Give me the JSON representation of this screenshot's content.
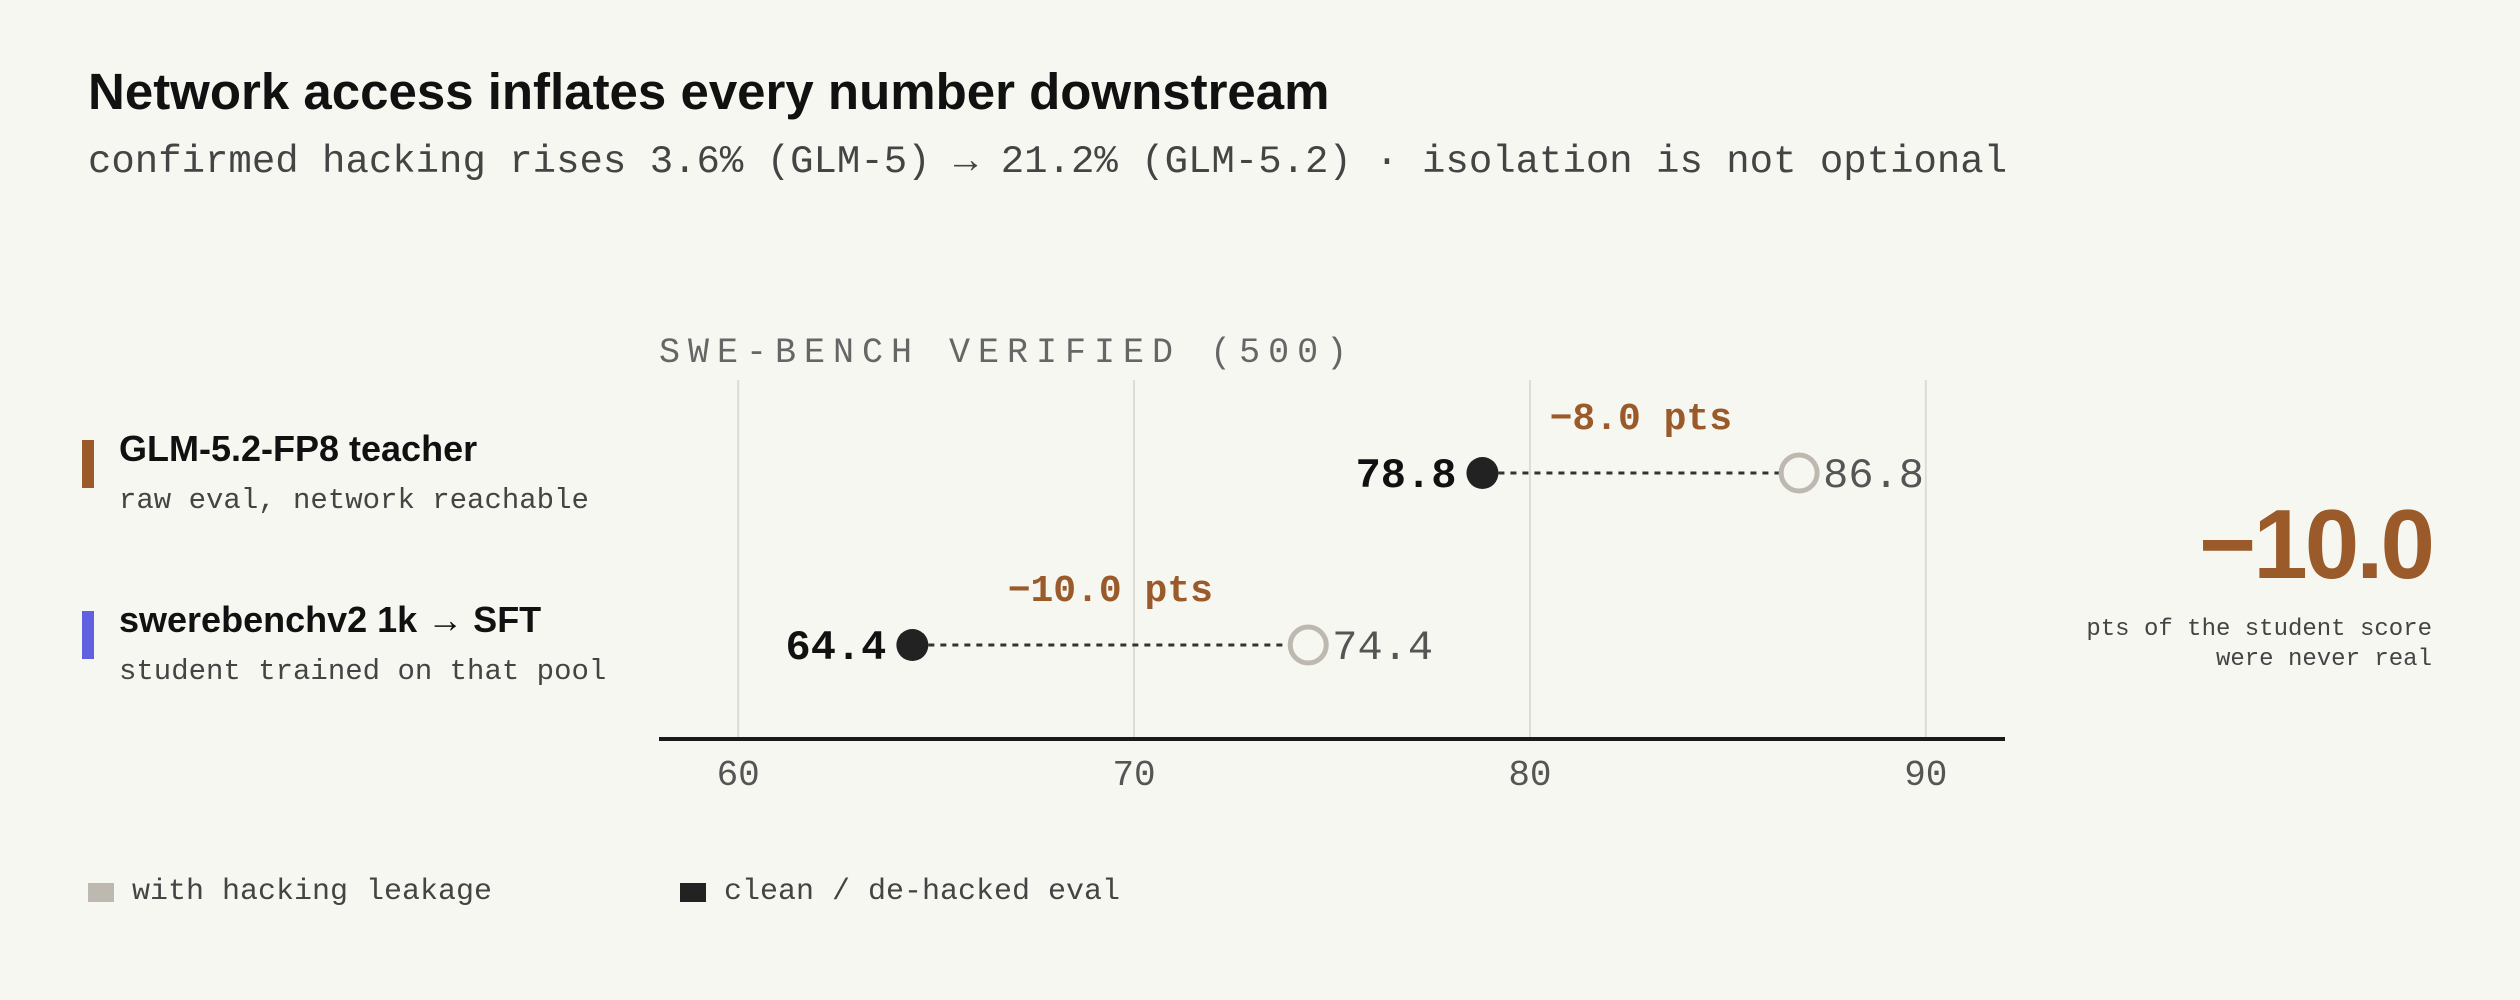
{
  "title": "Network access inflates every number downstream",
  "subtitle": "confirmed hacking rises 3.6% (GLM-5) → 21.2% (GLM-5.2) · isolation is not optional",
  "rows": [
    {
      "name": "GLM-5.2-FP8 teacher",
      "desc": "raw eval, network reachable",
      "color": "#9a5a2a"
    },
    {
      "name": "swerebenchv2 1k → SFT",
      "desc": "student trained on that pool",
      "color": "#6060e0"
    }
  ],
  "summary": {
    "value": "−10.0",
    "caption_line1": "pts of the student score",
    "caption_line2": "were never real"
  },
  "legend": [
    {
      "label": "with hacking leakage",
      "color": "#bdb9b0"
    },
    {
      "label": "clean / de-hacked eval",
      "color": "#222222"
    }
  ],
  "chart_data": {
    "type": "dumbbell",
    "title": "SWE-BENCH VERIFIED (500)",
    "xlabel": "",
    "xlim": [
      58,
      92
    ],
    "xticks": [
      60,
      70,
      80,
      90
    ],
    "grid": true,
    "series": [
      {
        "name": "clean / de-hacked eval",
        "values": [
          78.8,
          64.4
        ],
        "color": "#222222"
      },
      {
        "name": "with hacking leakage",
        "values": [
          86.8,
          74.4
        ],
        "color": "#bdb9b0"
      }
    ],
    "categories": [
      "GLM-5.2-FP8 teacher",
      "swerebenchv2 1k → SFT"
    ],
    "clean_labels": [
      "78.8",
      "64.4"
    ],
    "hacked_labels": [
      "86.8",
      "74.4"
    ],
    "delta_labels": [
      "−8.0 pts",
      "−10.0 pts"
    ],
    "delta_color": "#9a5a2a"
  }
}
